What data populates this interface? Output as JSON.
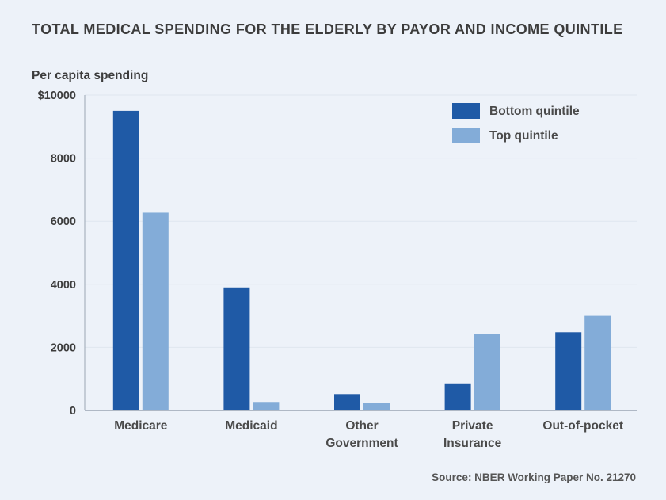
{
  "chart_data": {
    "type": "bar",
    "title": "TOTAL MEDICAL SPENDING FOR THE ELDERLY BY PAYOR AND INCOME QUINTILE",
    "ylabel": "Per capita spending",
    "xlabel": "",
    "categories": [
      [
        "Medicare"
      ],
      [
        "Medicaid"
      ],
      [
        "Other",
        "Government"
      ],
      [
        "Private",
        "Insurance"
      ],
      [
        "Out-of-pocket"
      ]
    ],
    "series": [
      {
        "name": "Bottom quintile",
        "color": "#1f5aa6",
        "values": [
          9500,
          3900,
          520,
          860,
          2480
        ]
      },
      {
        "name": "Top quintile",
        "color": "#83acd8",
        "values": [
          6270,
          270,
          240,
          2430,
          3000
        ]
      }
    ],
    "ylim": [
      0,
      10000
    ],
    "yticks": [
      0,
      2000,
      4000,
      6000,
      8000,
      10000
    ],
    "ytick_labels": [
      "0",
      "2000",
      "4000",
      "6000",
      "8000",
      "$10000"
    ],
    "legend_position": "top-right",
    "grid": true,
    "source": "Source: NBER Working Paper No. 21270"
  }
}
